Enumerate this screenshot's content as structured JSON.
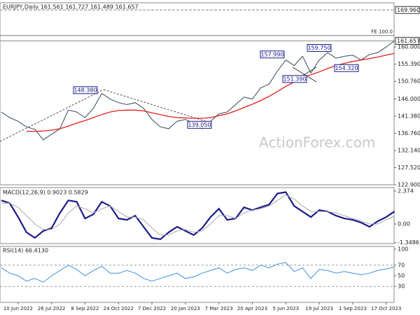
{
  "chart_data": [
    {
      "type": "line",
      "title": "EURJPY,Daily  161.561 161.727 161.489 161.657",
      "watermark": "ActionForex.com",
      "categories": [
        null,
        null,
        "10 Jun 2022",
        null,
        null,
        null,
        "26 Jul 2022",
        null,
        null,
        null,
        "8 Sep 2022",
        null,
        null,
        null,
        "24 Oct 2022",
        null,
        null,
        null,
        "7 Dec 2022",
        null,
        null,
        null,
        "20 Jan 2023",
        null,
        null,
        null,
        "7 Mar 2023",
        null,
        null,
        null,
        "20 Apr 2023",
        null,
        null,
        null,
        "5 Jun 2023",
        null,
        null,
        null,
        "19 Jul 2023",
        null,
        null,
        null,
        "1 Sep 2023",
        null,
        null,
        null,
        "17 Oct 2023",
        null
      ],
      "series": [
        {
          "name": "EURJPY",
          "color": "#34495e",
          "values": [
            142.5,
            141,
            140,
            138.5,
            137.8,
            135,
            136.5,
            138,
            143,
            142.5,
            141,
            143.5,
            147.5,
            146,
            145,
            144.5,
            145,
            143.5,
            140.5,
            138.5,
            138,
            140,
            140.5,
            139.5,
            138,
            140,
            142,
            142.5,
            144.5,
            146.5,
            146,
            149,
            150,
            153.5,
            156.5,
            155,
            157.5,
            153,
            156.5,
            158.5,
            157,
            157.5,
            157.8,
            156.5,
            158,
            158.5,
            160,
            161.657
          ]
        },
        {
          "name": "MA",
          "color": "#e0201b",
          "values": [
            null,
            null,
            null,
            137.3,
            137.3,
            137.4,
            137.6,
            138,
            138.7,
            139.5,
            140.2,
            141,
            141.8,
            142.5,
            142.9,
            143,
            143,
            142.8,
            142.3,
            141.8,
            141.3,
            141,
            140.9,
            140.8,
            140.8,
            141,
            141.5,
            142,
            142.8,
            143.7,
            144.6,
            145.6,
            146.7,
            148,
            149.4,
            150.6,
            151.8,
            152.5,
            153.3,
            154.2,
            155,
            155.6,
            156.1,
            156.5,
            156.9,
            157.3,
            157.8,
            158.3
          ]
        }
      ],
      "ylim": [
        122.9,
        171.9
      ],
      "yticks": [
        {
          "value": 122.9,
          "label": "122.900"
        },
        {
          "value": 127.52,
          "label": "127.520"
        },
        {
          "value": 132.14,
          "label": "132.140"
        },
        {
          "value": 136.76,
          "label": "136.760"
        },
        {
          "value": 141.38,
          "label": "141.380"
        },
        {
          "value": 146,
          "label": "146.000"
        },
        {
          "value": 150.76,
          "label": "150.760"
        },
        {
          "value": 155.39,
          "label": "155.390"
        },
        {
          "value": 160,
          "label": "160.000"
        }
      ],
      "levels": [
        {
          "value": 169.96,
          "label": "169.960"
        },
        {
          "value": 161.657,
          "label": "161.657"
        }
      ],
      "fe_level": {
        "value": 163.1,
        "label": "FE 100.0"
      },
      "annotations": [
        {
          "value": 148.38,
          "label": "148.380"
        },
        {
          "value": 139.05,
          "label": "139.050"
        },
        {
          "value": 157.99,
          "label": "157.990"
        },
        {
          "value": 159.75,
          "label": "159.750"
        },
        {
          "value": 151.39,
          "label": "151.390"
        },
        {
          "value": 154.32,
          "label": "154.320"
        }
      ]
    },
    {
      "type": "line",
      "title": "MACD(12,26,9) 0.9023 0.5829",
      "series": [
        {
          "name": "MACD",
          "color": "#1a1a8c",
          "values": [
            1.7,
            1.5,
            0.5,
            -0.6,
            -1.0,
            -0.5,
            -0.3,
            0.8,
            1.7,
            1.6,
            0.4,
            0.7,
            1.6,
            1.3,
            0.4,
            0.3,
            0.6,
            -0.2,
            -1.0,
            -1.1,
            -0.6,
            -0.2,
            -0.5,
            -0.8,
            -0.3,
            0.5,
            1.1,
            0.3,
            0.4,
            1.2,
            1.0,
            1.2,
            1.4,
            2.2,
            2.3,
            1.3,
            0.9,
            0.5,
            1.0,
            0.9,
            0.6,
            0.4,
            0.3,
            0.1,
            -0.2,
            0.2,
            0.5,
            0.9023
          ]
        },
        {
          "name": "Signal",
          "color": "#aaaaaa",
          "values": [
            1.5,
            1.5,
            1.2,
            0.6,
            0.0,
            -0.4,
            -0.4,
            0.0,
            0.8,
            1.3,
            1.1,
            0.8,
            1.1,
            1.3,
            0.9,
            0.5,
            0.5,
            0.3,
            -0.3,
            -0.8,
            -0.8,
            -0.5,
            -0.4,
            -0.6,
            -0.5,
            0.0,
            0.6,
            0.6,
            0.4,
            0.8,
            1.0,
            1.1,
            1.3,
            1.7,
            2.1,
            1.8,
            1.3,
            0.9,
            0.9,
            0.9,
            0.8,
            0.6,
            0.4,
            0.2,
            0.0,
            0.0,
            0.3,
            0.5829
          ]
        }
      ],
      "ylim": [
        -1.414,
        2.626
      ],
      "yticks": [
        2.374,
        {
          "value": 0,
          "label": "0.00"
        },
        -1.3486
      ]
    },
    {
      "type": "line",
      "title": "RSI(14) 66.4130",
      "series": [
        {
          "name": "RSI",
          "color": "#3d8fe0",
          "values": [
            65,
            55,
            50,
            40,
            45,
            38,
            50,
            60,
            70,
            62,
            50,
            60,
            68,
            55,
            55,
            60,
            55,
            45,
            40,
            45,
            50,
            55,
            45,
            48,
            55,
            60,
            65,
            55,
            62,
            65,
            60,
            70,
            65,
            72,
            75,
            58,
            65,
            45,
            62,
            60,
            55,
            58,
            55,
            52,
            55,
            60,
            63,
            66.413
          ]
        }
      ],
      "ylim": [
        0,
        100
      ],
      "yticks": [
        100,
        70,
        50,
        30
      ],
      "guides": [
        70,
        30
      ]
    }
  ]
}
